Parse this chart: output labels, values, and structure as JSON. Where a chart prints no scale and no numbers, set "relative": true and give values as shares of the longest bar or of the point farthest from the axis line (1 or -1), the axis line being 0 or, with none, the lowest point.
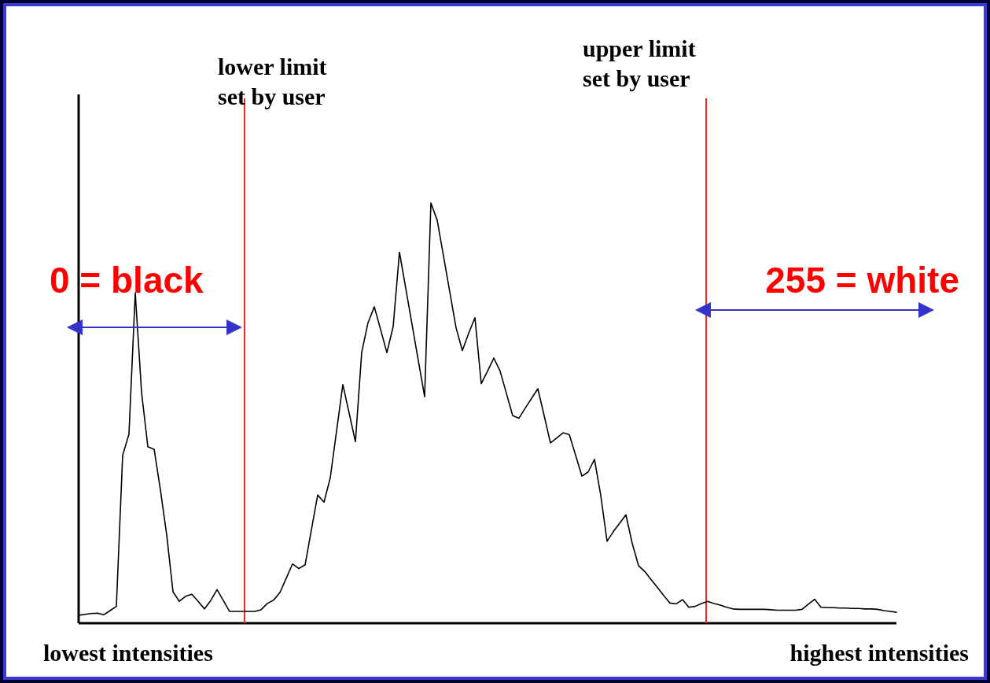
{
  "chart_data": {
    "type": "line",
    "relative": true,
    "categories": [
      null,
      null,
      null,
      null,
      null,
      null,
      null,
      null,
      null,
      null,
      null,
      null,
      null,
      null,
      null,
      null,
      null,
      null,
      null,
      null,
      null,
      null,
      null,
      null,
      null,
      null,
      null,
      null,
      null,
      null,
      null,
      null,
      null,
      null,
      null,
      null,
      null,
      null,
      null,
      null,
      null,
      null,
      null,
      null,
      null,
      null,
      null,
      null,
      null,
      null,
      null,
      null,
      null,
      null,
      null,
      null,
      null,
      null,
      null,
      null,
      null,
      null,
      null,
      null,
      null,
      null,
      null,
      null,
      null,
      null,
      null,
      null,
      null,
      null,
      null,
      null,
      null,
      null,
      null,
      null,
      null,
      null,
      null,
      null,
      null,
      null,
      null,
      null,
      null,
      null,
      null,
      null,
      null,
      null,
      null,
      null,
      null,
      null,
      null,
      null,
      null,
      null,
      null,
      null,
      null,
      null,
      null,
      null,
      null,
      null,
      null,
      null,
      null,
      null,
      null,
      null,
      null,
      null,
      null,
      null,
      null,
      null,
      null,
      null,
      null,
      null,
      null,
      null,
      null,
      null,
      null
    ],
    "series": [
      {
        "color": "#000000",
        "values": [
          0.019,
          0.021,
          0.023,
          0.024,
          0.02,
          0.03,
          0.04,
          0.4,
          0.45,
          0.786,
          0.55,
          0.42,
          0.414,
          0.317,
          0.21,
          0.075,
          0.052,
          0.064,
          0.069,
          0.052,
          0.034,
          0.054,
          0.08,
          0.054,
          0.028,
          0.028,
          0.028,
          0.028,
          0.028,
          0.032,
          0.047,
          0.055,
          0.073,
          0.107,
          0.141,
          0.13,
          0.139,
          0.222,
          0.305,
          0.288,
          0.346,
          0.457,
          0.568,
          0.5,
          0.432,
          0.645,
          0.715,
          0.753,
          0.699,
          0.644,
          0.706,
          0.883,
          0.797,
          0.711,
          0.625,
          0.539,
          1,
          0.959,
          0.874,
          0.788,
          0.703,
          0.649,
          0.69,
          0.727,
          0.57,
          0.6,
          0.631,
          0.6,
          0.547,
          0.494,
          0.488,
          0.512,
          0.535,
          0.558,
          0.494,
          0.429,
          0.441,
          0.453,
          0.449,
          0.4,
          0.35,
          0.36,
          0.39,
          0.304,
          0.195,
          0.218,
          0.238,
          0.258,
          0.19,
          0.137,
          0.123,
          0.104,
          0.085,
          0.066,
          0.048,
          0.046,
          0.056,
          0.038,
          0.04,
          0.047,
          0.052,
          0.047,
          0.043,
          0.038,
          0.034,
          0.033,
          0.033,
          0.033,
          0.033,
          0.033,
          0.032,
          0.031,
          0.031,
          0.031,
          0.031,
          0.033,
          0.045,
          0.057,
          0.038,
          0.037,
          0.037,
          0.036,
          0.036,
          0.035,
          0.035,
          0.034,
          0.034,
          0.033,
          0.03,
          0.028,
          0.026
        ]
      }
    ],
    "annotations": [
      "lower limit\nset by user",
      "upper limit\nset by user",
      "0 = black",
      "255 = white",
      "lowest intensities",
      "highest intensities"
    ]
  }
}
